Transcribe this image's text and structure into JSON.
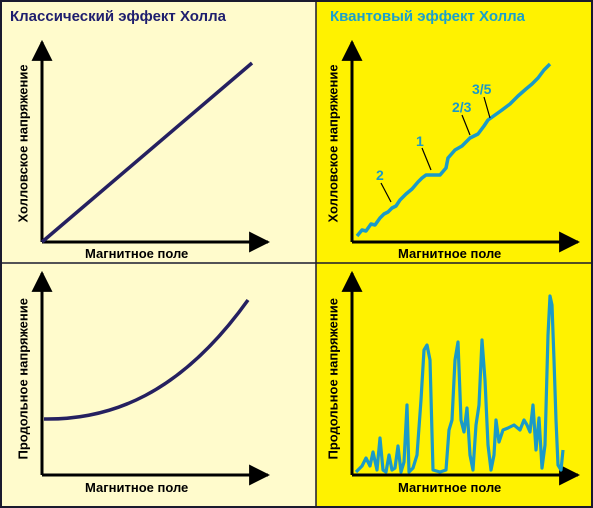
{
  "colors": {
    "left_bg": "#fffbcc",
    "right_bg": "#fff200",
    "left_title": "#1e1e6e",
    "right_title": "#1aa0cc",
    "classic_curve": "#252060",
    "quantum_curve": "#1a9ac8",
    "axis": "#000000"
  },
  "left_panel": {
    "title": "Классический эффект Холла",
    "top_chart": {
      "ylabel": "Холловское напряжение",
      "xlabel": "Магнитное поле"
    },
    "bottom_chart": {
      "ylabel": "Продольное напряжение",
      "xlabel": "Магнитное поле"
    }
  },
  "right_panel": {
    "title": "Квантовый эффект Холла",
    "top_chart": {
      "ylabel": "Холловское напряжение",
      "xlabel": "Магнитное поле",
      "plateau_labels": [
        "2",
        "1",
        "2/3",
        "3/5"
      ]
    },
    "bottom_chart": {
      "ylabel": "Продольное напряжение",
      "xlabel": "Магнитное поле"
    }
  }
}
